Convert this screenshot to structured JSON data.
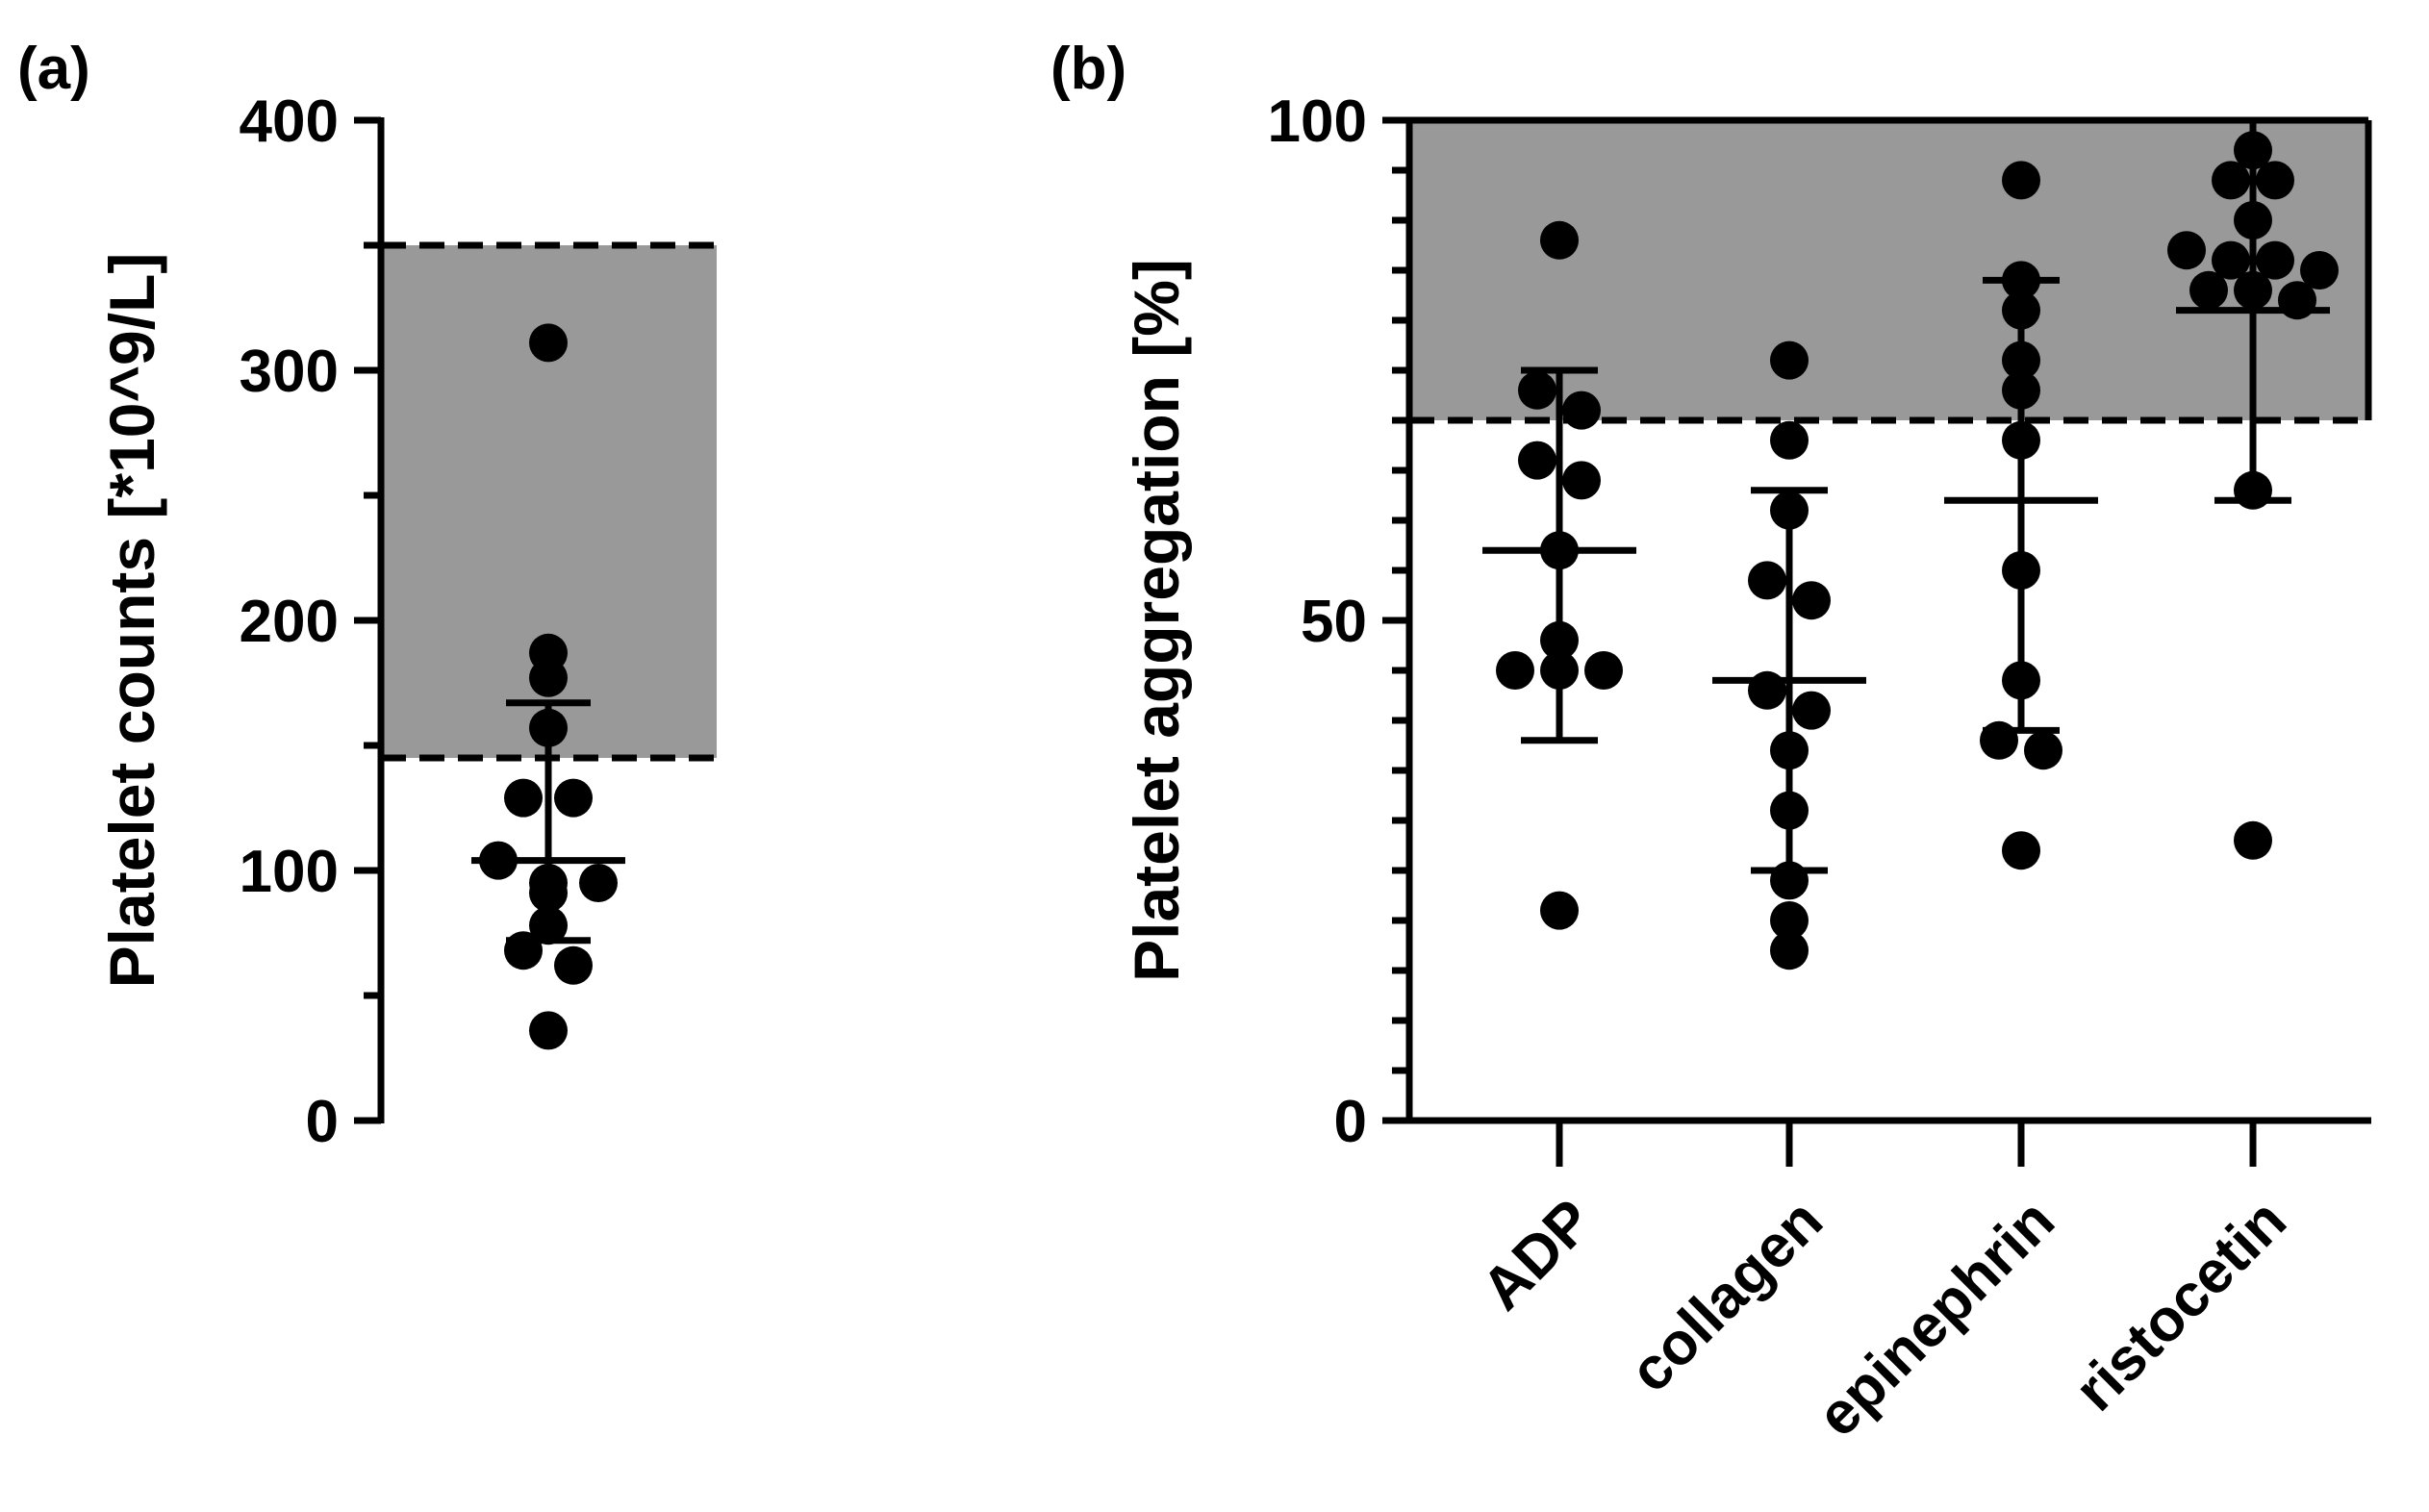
{
  "chart_data": [
    {
      "panel": "(a)",
      "type": "scatter",
      "ylabel": "Platelet counts [*10^9/L]",
      "ylim": [
        0,
        400
      ],
      "yticks": [
        0,
        100,
        200,
        300,
        400
      ],
      "reference_range": [
        145,
        350
      ],
      "reference_color": "#999999",
      "points": [
        311,
        187,
        177,
        157,
        129,
        129,
        104,
        95,
        95,
        91,
        78,
        68,
        62,
        36
      ],
      "mean": 104,
      "sd_upper": 167,
      "sd_lower": 72
    },
    {
      "panel": "(b)",
      "type": "scatter",
      "ylabel": "Platelet aggregation [%]",
      "ylim": [
        0,
        100
      ],
      "yticks": [
        0,
        50,
        100
      ],
      "reference_threshold": 70,
      "reference_color": "#999999",
      "categories": [
        "ADP",
        "collagen",
        "epinephrin",
        "ristocetin"
      ],
      "series": [
        {
          "name": "ADP",
          "points": [
            88,
            73,
            71,
            66,
            64,
            57,
            48,
            45,
            45,
            45,
            21
          ],
          "mean": 57,
          "sd_upper": 75,
          "sd_lower": 38
        },
        {
          "name": "collagen",
          "points": [
            76,
            68,
            61,
            54,
            52,
            43,
            41,
            37,
            31,
            24,
            20,
            17
          ],
          "mean": 44,
          "sd_upper": 63,
          "sd_lower": 25
        },
        {
          "name": "epinephrin",
          "points": [
            94,
            84,
            81,
            76,
            73,
            68,
            55,
            44,
            38,
            37,
            27
          ],
          "mean": 62,
          "sd_upper": 84,
          "sd_lower": 39
        },
        {
          "name": "ristocetin",
          "points": [
            97,
            94,
            94,
            90,
            87,
            86,
            86,
            85,
            83,
            83,
            82,
            63,
            28
          ],
          "mean": 81,
          "sd_upper": 100,
          "sd_lower": 62
        }
      ]
    }
  ]
}
